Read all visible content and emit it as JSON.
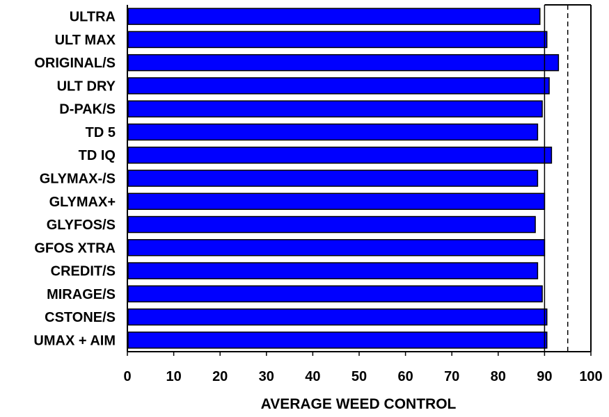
{
  "chart_data": {
    "type": "bar",
    "orientation": "horizontal",
    "categories": [
      "ULTRA",
      "ULT MAX",
      "ORIGINAL/S",
      "ULT DRY",
      "D-PAK/S",
      "TD 5",
      "TD IQ",
      "GLYMAX-/S",
      "GLYMAX+",
      "GLYFOS/S",
      "GFOS XTRA",
      "CREDIT/S",
      "MIRAGE/S",
      "CSTONE/S",
      "UMAX + AIM"
    ],
    "values": [
      89,
      90.5,
      93,
      91,
      89.5,
      88.5,
      91.5,
      88.5,
      90,
      88,
      90,
      88.5,
      89.5,
      90.5,
      90.5
    ],
    "xlabel": "AVERAGE WEED CONTROL",
    "ylabel": "",
    "xlim": [
      0,
      100
    ],
    "xticks": [
      0,
      10,
      20,
      30,
      40,
      50,
      60,
      70,
      80,
      90,
      100
    ],
    "reference_lines": [
      90,
      95
    ],
    "bar_color": "#0000ff",
    "grid": false
  }
}
